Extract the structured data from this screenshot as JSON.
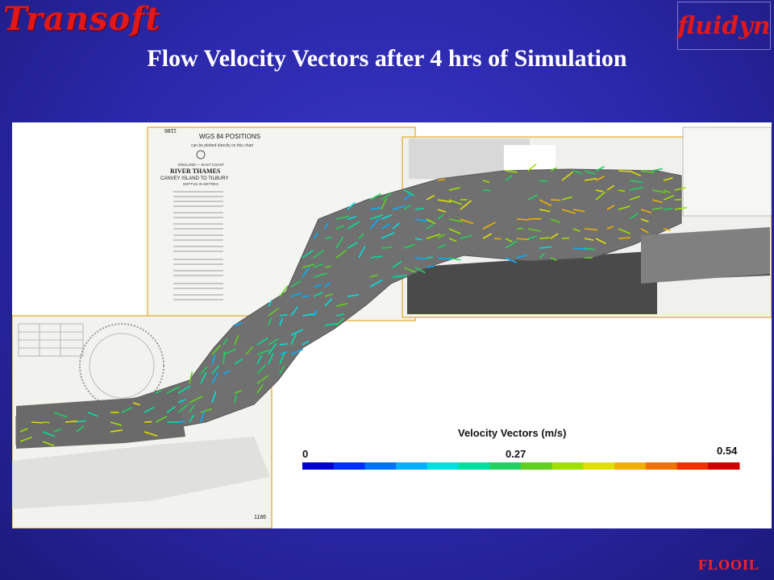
{
  "header": {
    "logo_left": "Transoft",
    "logo_right": "fluidyn",
    "title": "Flow Velocity Vectors after 4 hrs of Simulation"
  },
  "chart_labels": {
    "upper_positions": "WGS 84 POSITIONS",
    "upper_positions_sub": "can be plotted directly on this chart",
    "coast": "ENGLAND — EAST COAST",
    "river": "RIVER THAMES",
    "reach": "CANVEY ISLAND TO TILBURY",
    "depths": "DEPTHS IN METRES",
    "chart_number": "1186"
  },
  "legend": {
    "title": "Velocity Vectors (m/s)",
    "min": "0",
    "mid": "0.27",
    "max": "0.54",
    "colors": [
      "#0000d0",
      "#0030ff",
      "#0070ff",
      "#00b0ff",
      "#00e0e0",
      "#00e0a0",
      "#20d060",
      "#60d020",
      "#a0e000",
      "#e0e000",
      "#f0b000",
      "#f07000",
      "#f03000",
      "#d00000"
    ]
  },
  "footer": {
    "label": "FLOOIL"
  }
}
